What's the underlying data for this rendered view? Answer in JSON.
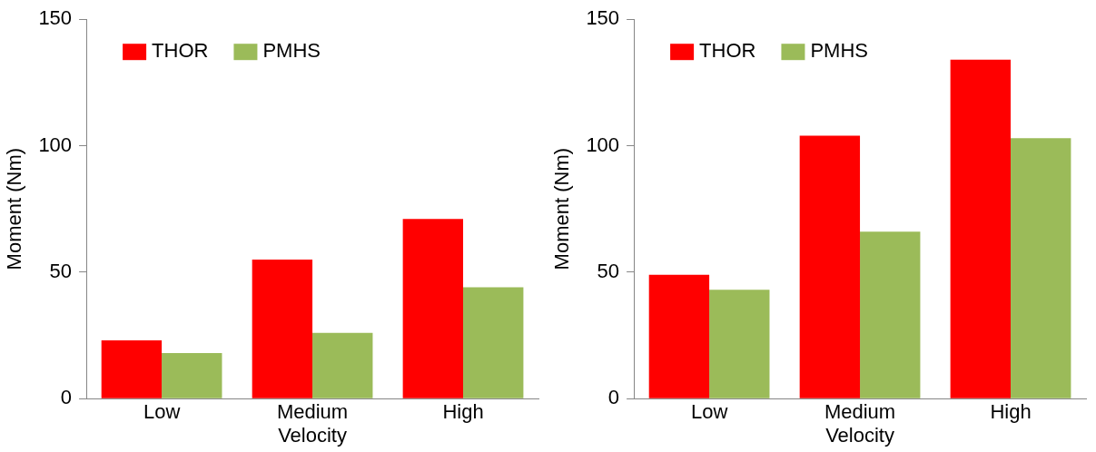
{
  "chart_data": [
    {
      "type": "bar",
      "xlabel": "Velocity",
      "ylabel": "Moment (Nm)",
      "categories": [
        "Low",
        "Medium",
        "High"
      ],
      "series": [
        {
          "name": "THOR",
          "color": "#ff0000",
          "values": [
            23,
            55,
            71
          ]
        },
        {
          "name": "PMHS",
          "color": "#9bbb59",
          "values": [
            18,
            26,
            44
          ]
        }
      ],
      "ylim": [
        0,
        150
      ],
      "yticks": [
        0,
        50,
        100,
        150
      ],
      "grid": false,
      "legend": "top left"
    },
    {
      "type": "bar",
      "xlabel": "Velocity",
      "ylabel": "Moment (Nm)",
      "categories": [
        "Low",
        "Medium",
        "High"
      ],
      "series": [
        {
          "name": "THOR",
          "color": "#ff0000",
          "values": [
            49,
            104,
            134
          ]
        },
        {
          "name": "PMHS",
          "color": "#9bbb59",
          "values": [
            43,
            66,
            103
          ]
        }
      ],
      "ylim": [
        0,
        150
      ],
      "yticks": [
        0,
        50,
        100,
        150
      ],
      "grid": false,
      "legend": "top left"
    }
  ]
}
